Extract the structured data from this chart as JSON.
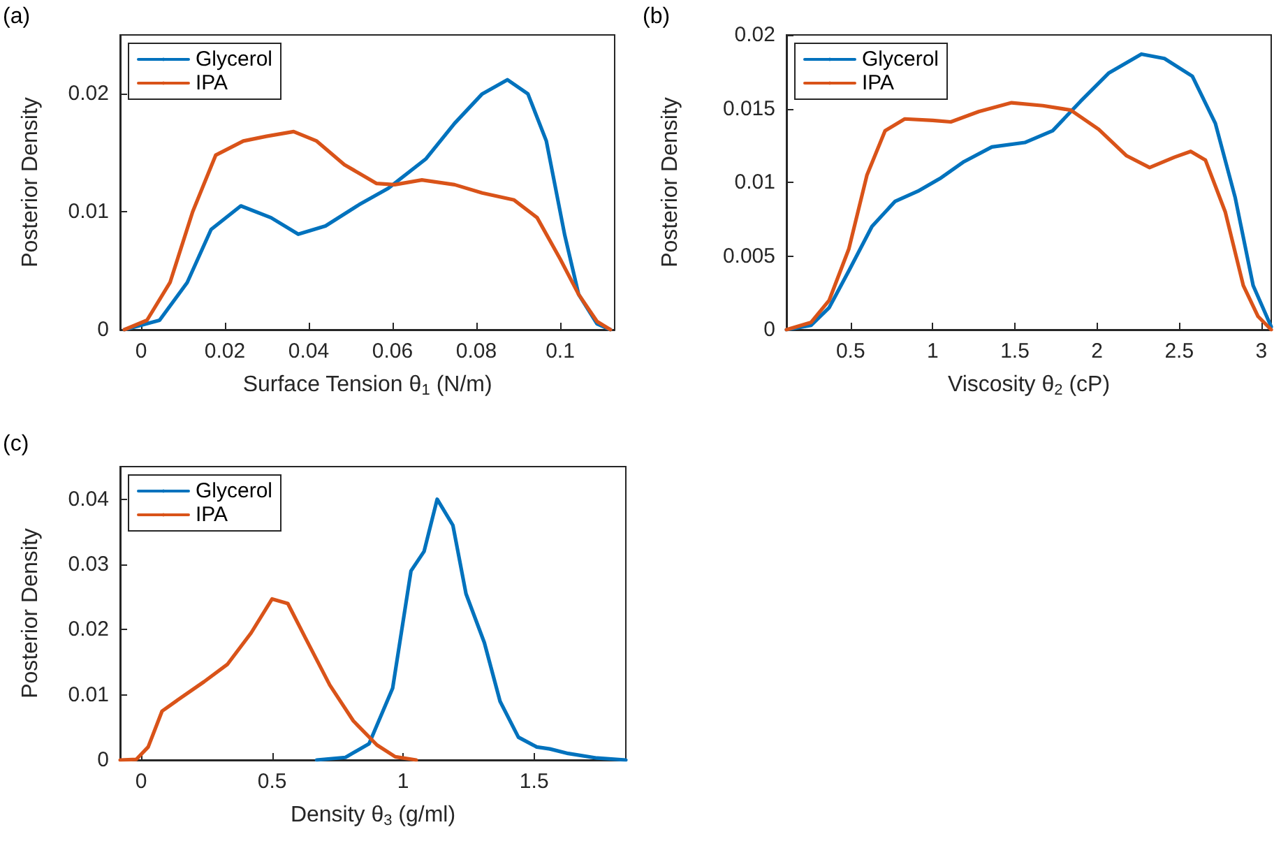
{
  "chart_data": [
    {
      "type": "line",
      "annotations": [
        "(a)"
      ],
      "xlabel": "Surface Tension θ$_{1}$ (N/m)",
      "ylabel": "Posterior Density",
      "xlim": [
        -0.005,
        0.113
      ],
      "xticks": [
        0,
        0.02,
        0.04,
        0.06,
        0.08,
        0.1
      ],
      "ylim": [
        0,
        0.025
      ],
      "yticks": [
        0,
        0.01,
        0.02
      ],
      "legend": "top left",
      "grid": false,
      "series": [
        {
          "name": "Glycerol",
          "color": "#0072bd",
          "x": [
            -0.004,
            0.0044,
            0.011,
            0.0167,
            0.0238,
            0.031,
            0.0375,
            0.044,
            0.052,
            0.059,
            0.068,
            0.0748,
            0.0814,
            0.0874,
            0.0923,
            0.0967,
            0.1011,
            0.1044,
            0.1088,
            0.112
          ],
          "values": [
            0,
            0.0008,
            0.004,
            0.0085,
            0.0105,
            0.0095,
            0.0081,
            0.0088,
            0.0106,
            0.012,
            0.0145,
            0.0175,
            0.02,
            0.0212,
            0.02,
            0.016,
            0.008,
            0.003,
            0.0005,
            0
          ]
        },
        {
          "name": "IPA",
          "color": "#d95319",
          "x": [
            -0.004,
            0.0014,
            0.0069,
            0.0123,
            0.0178,
            0.0244,
            0.0299,
            0.0364,
            0.0419,
            0.0485,
            0.0562,
            0.0605,
            0.067,
            0.0748,
            0.0814,
            0.089,
            0.0945,
            0.1,
            0.1044,
            0.1088,
            0.112
          ],
          "values": [
            0,
            0.0008,
            0.004,
            0.01,
            0.0148,
            0.016,
            0.0164,
            0.0168,
            0.016,
            0.014,
            0.0124,
            0.0123,
            0.0127,
            0.0123,
            0.0116,
            0.011,
            0.0095,
            0.006,
            0.003,
            0.0007,
            0
          ]
        }
      ]
    },
    {
      "type": "line",
      "annotations": [
        "(b)"
      ],
      "xlabel": "Viscosity θ$_{2}$ (cP)",
      "ylabel": "Posterior Density",
      "xlim": [
        0.11,
        3.06
      ],
      "xticks": [
        0.5,
        1,
        1.5,
        2,
        2.5,
        3
      ],
      "ylim": [
        0,
        0.02
      ],
      "yticks": [
        0,
        0.005,
        0.01,
        0.015,
        0.02
      ],
      "legend": "top left",
      "grid": false,
      "series": [
        {
          "name": "Glycerol",
          "color": "#0072bd",
          "x": [
            0.11,
            0.26,
            0.37,
            0.49,
            0.63,
            0.77,
            0.91,
            1.05,
            1.19,
            1.36,
            1.56,
            1.73,
            1.9,
            2.07,
            2.27,
            2.41,
            2.58,
            2.72,
            2.84,
            2.95,
            3.06
          ],
          "values": [
            0,
            0.0003,
            0.0015,
            0.004,
            0.007,
            0.0087,
            0.0094,
            0.0103,
            0.0114,
            0.0124,
            0.0127,
            0.0135,
            0.0155,
            0.0174,
            0.0187,
            0.0184,
            0.0172,
            0.014,
            0.009,
            0.003,
            0.0002
          ]
        },
        {
          "name": "IPA",
          "color": "#d95319",
          "x": [
            0.11,
            0.26,
            0.37,
            0.49,
            0.6,
            0.71,
            0.83,
            1.0,
            1.11,
            1.28,
            1.48,
            1.67,
            1.84,
            2.01,
            2.18,
            2.32,
            2.47,
            2.57,
            2.66,
            2.78,
            2.89,
            2.98,
            3.06
          ],
          "values": [
            0,
            0.0005,
            0.002,
            0.0055,
            0.0105,
            0.0135,
            0.0143,
            0.0142,
            0.0141,
            0.0148,
            0.0154,
            0.0152,
            0.0149,
            0.0136,
            0.0118,
            0.011,
            0.0117,
            0.0121,
            0.0115,
            0.008,
            0.003,
            0.0009,
            0
          ]
        }
      ]
    },
    {
      "type": "line",
      "annotations": [
        "(c)"
      ],
      "xlabel": "Density θ$_{3}$ (g/ml)",
      "ylabel": "Posterior Density",
      "xlim": [
        -0.08,
        1.85
      ],
      "xticks": [
        0,
        0.5,
        1,
        1.5
      ],
      "ylim": [
        0,
        0.045
      ],
      "yticks": [
        0,
        0.01,
        0.02,
        0.03,
        0.04
      ],
      "legend": "top left",
      "grid": false,
      "series": [
        {
          "name": "Glycerol",
          "color": "#0072bd",
          "x": [
            0.67,
            0.78,
            0.87,
            0.96,
            1.03,
            1.08,
            1.13,
            1.19,
            1.24,
            1.31,
            1.37,
            1.44,
            1.51,
            1.56,
            1.63,
            1.74,
            1.85
          ],
          "values": [
            0,
            0.0004,
            0.0025,
            0.011,
            0.029,
            0.032,
            0.04,
            0.036,
            0.0255,
            0.018,
            0.009,
            0.0035,
            0.002,
            0.0017,
            0.001,
            0.0003,
            0
          ]
        },
        {
          "name": "IPA",
          "color": "#d95319",
          "x": [
            -0.08,
            -0.018,
            0.027,
            0.08,
            0.15,
            0.24,
            0.33,
            0.42,
            0.5,
            0.56,
            0.63,
            0.72,
            0.81,
            0.9,
            0.97,
            1.05
          ],
          "values": [
            0,
            0.0001,
            0.002,
            0.0075,
            0.0095,
            0.012,
            0.0147,
            0.0195,
            0.0247,
            0.024,
            0.0185,
            0.0115,
            0.006,
            0.0023,
            0.0005,
            0
          ]
        }
      ]
    }
  ]
}
